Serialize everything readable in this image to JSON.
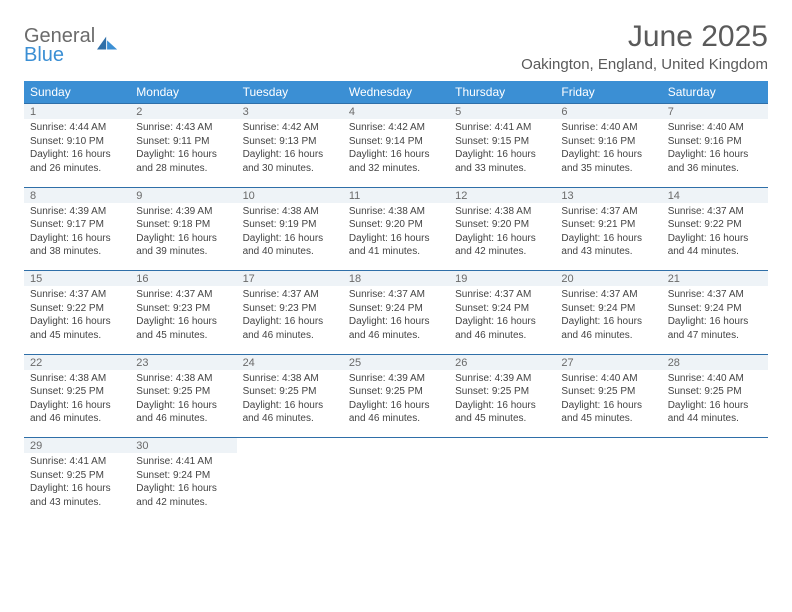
{
  "logo": {
    "line1": "General",
    "line2": "Blue"
  },
  "title": "June 2025",
  "location": "Oakington, England, United Kingdom",
  "day_headers": [
    "Sunday",
    "Monday",
    "Tuesday",
    "Wednesday",
    "Thursday",
    "Friday",
    "Saturday"
  ],
  "colors": {
    "header_bg": "#3b8fd4",
    "header_fg": "#ffffff",
    "rule": "#2f6fa8",
    "daynum_bg": "#eef3f7",
    "text": "#444444",
    "title": "#5a5a5a"
  },
  "weeks": [
    [
      {
        "n": "1",
        "sr": "Sunrise: 4:44 AM",
        "ss": "Sunset: 9:10 PM",
        "d1": "Daylight: 16 hours",
        "d2": "and 26 minutes."
      },
      {
        "n": "2",
        "sr": "Sunrise: 4:43 AM",
        "ss": "Sunset: 9:11 PM",
        "d1": "Daylight: 16 hours",
        "d2": "and 28 minutes."
      },
      {
        "n": "3",
        "sr": "Sunrise: 4:42 AM",
        "ss": "Sunset: 9:13 PM",
        "d1": "Daylight: 16 hours",
        "d2": "and 30 minutes."
      },
      {
        "n": "4",
        "sr": "Sunrise: 4:42 AM",
        "ss": "Sunset: 9:14 PM",
        "d1": "Daylight: 16 hours",
        "d2": "and 32 minutes."
      },
      {
        "n": "5",
        "sr": "Sunrise: 4:41 AM",
        "ss": "Sunset: 9:15 PM",
        "d1": "Daylight: 16 hours",
        "d2": "and 33 minutes."
      },
      {
        "n": "6",
        "sr": "Sunrise: 4:40 AM",
        "ss": "Sunset: 9:16 PM",
        "d1": "Daylight: 16 hours",
        "d2": "and 35 minutes."
      },
      {
        "n": "7",
        "sr": "Sunrise: 4:40 AM",
        "ss": "Sunset: 9:16 PM",
        "d1": "Daylight: 16 hours",
        "d2": "and 36 minutes."
      }
    ],
    [
      {
        "n": "8",
        "sr": "Sunrise: 4:39 AM",
        "ss": "Sunset: 9:17 PM",
        "d1": "Daylight: 16 hours",
        "d2": "and 38 minutes."
      },
      {
        "n": "9",
        "sr": "Sunrise: 4:39 AM",
        "ss": "Sunset: 9:18 PM",
        "d1": "Daylight: 16 hours",
        "d2": "and 39 minutes."
      },
      {
        "n": "10",
        "sr": "Sunrise: 4:38 AM",
        "ss": "Sunset: 9:19 PM",
        "d1": "Daylight: 16 hours",
        "d2": "and 40 minutes."
      },
      {
        "n": "11",
        "sr": "Sunrise: 4:38 AM",
        "ss": "Sunset: 9:20 PM",
        "d1": "Daylight: 16 hours",
        "d2": "and 41 minutes."
      },
      {
        "n": "12",
        "sr": "Sunrise: 4:38 AM",
        "ss": "Sunset: 9:20 PM",
        "d1": "Daylight: 16 hours",
        "d2": "and 42 minutes."
      },
      {
        "n": "13",
        "sr": "Sunrise: 4:37 AM",
        "ss": "Sunset: 9:21 PM",
        "d1": "Daylight: 16 hours",
        "d2": "and 43 minutes."
      },
      {
        "n": "14",
        "sr": "Sunrise: 4:37 AM",
        "ss": "Sunset: 9:22 PM",
        "d1": "Daylight: 16 hours",
        "d2": "and 44 minutes."
      }
    ],
    [
      {
        "n": "15",
        "sr": "Sunrise: 4:37 AM",
        "ss": "Sunset: 9:22 PM",
        "d1": "Daylight: 16 hours",
        "d2": "and 45 minutes."
      },
      {
        "n": "16",
        "sr": "Sunrise: 4:37 AM",
        "ss": "Sunset: 9:23 PM",
        "d1": "Daylight: 16 hours",
        "d2": "and 45 minutes."
      },
      {
        "n": "17",
        "sr": "Sunrise: 4:37 AM",
        "ss": "Sunset: 9:23 PM",
        "d1": "Daylight: 16 hours",
        "d2": "and 46 minutes."
      },
      {
        "n": "18",
        "sr": "Sunrise: 4:37 AM",
        "ss": "Sunset: 9:24 PM",
        "d1": "Daylight: 16 hours",
        "d2": "and 46 minutes."
      },
      {
        "n": "19",
        "sr": "Sunrise: 4:37 AM",
        "ss": "Sunset: 9:24 PM",
        "d1": "Daylight: 16 hours",
        "d2": "and 46 minutes."
      },
      {
        "n": "20",
        "sr": "Sunrise: 4:37 AM",
        "ss": "Sunset: 9:24 PM",
        "d1": "Daylight: 16 hours",
        "d2": "and 46 minutes."
      },
      {
        "n": "21",
        "sr": "Sunrise: 4:37 AM",
        "ss": "Sunset: 9:24 PM",
        "d1": "Daylight: 16 hours",
        "d2": "and 47 minutes."
      }
    ],
    [
      {
        "n": "22",
        "sr": "Sunrise: 4:38 AM",
        "ss": "Sunset: 9:25 PM",
        "d1": "Daylight: 16 hours",
        "d2": "and 46 minutes."
      },
      {
        "n": "23",
        "sr": "Sunrise: 4:38 AM",
        "ss": "Sunset: 9:25 PM",
        "d1": "Daylight: 16 hours",
        "d2": "and 46 minutes."
      },
      {
        "n": "24",
        "sr": "Sunrise: 4:38 AM",
        "ss": "Sunset: 9:25 PM",
        "d1": "Daylight: 16 hours",
        "d2": "and 46 minutes."
      },
      {
        "n": "25",
        "sr": "Sunrise: 4:39 AM",
        "ss": "Sunset: 9:25 PM",
        "d1": "Daylight: 16 hours",
        "d2": "and 46 minutes."
      },
      {
        "n": "26",
        "sr": "Sunrise: 4:39 AM",
        "ss": "Sunset: 9:25 PM",
        "d1": "Daylight: 16 hours",
        "d2": "and 45 minutes."
      },
      {
        "n": "27",
        "sr": "Sunrise: 4:40 AM",
        "ss": "Sunset: 9:25 PM",
        "d1": "Daylight: 16 hours",
        "d2": "and 45 minutes."
      },
      {
        "n": "28",
        "sr": "Sunrise: 4:40 AM",
        "ss": "Sunset: 9:25 PM",
        "d1": "Daylight: 16 hours",
        "d2": "and 44 minutes."
      }
    ],
    [
      {
        "n": "29",
        "sr": "Sunrise: 4:41 AM",
        "ss": "Sunset: 9:25 PM",
        "d1": "Daylight: 16 hours",
        "d2": "and 43 minutes."
      },
      {
        "n": "30",
        "sr": "Sunrise: 4:41 AM",
        "ss": "Sunset: 9:24 PM",
        "d1": "Daylight: 16 hours",
        "d2": "and 42 minutes."
      },
      null,
      null,
      null,
      null,
      null
    ]
  ]
}
